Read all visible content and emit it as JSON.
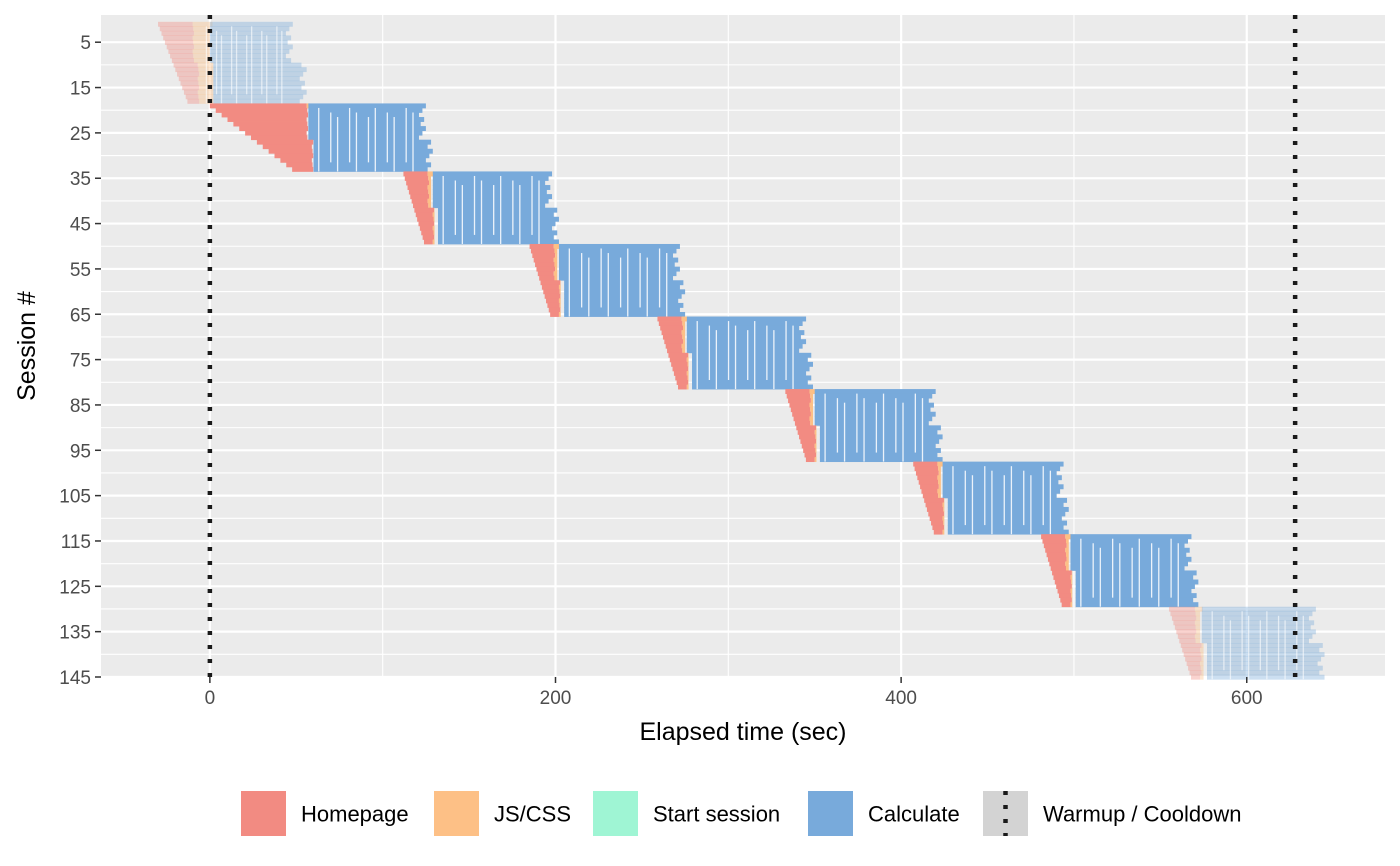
{
  "chart_data": {
    "type": "gantt",
    "xlabel": "Elapsed time (sec)",
    "ylabel": "Session #",
    "xlim": [
      -63,
      680
    ],
    "ylim": [
      145,
      -1
    ],
    "x_ticks": [
      "0",
      "200",
      "400",
      "600"
    ],
    "x_tick_values": [
      0,
      200,
      400,
      600
    ],
    "y_ticks": [
      "5",
      "15",
      "25",
      "35",
      "45",
      "55",
      "65",
      "75",
      "85",
      "95",
      "105",
      "115",
      "125",
      "135",
      "145"
    ],
    "y_tick_values": [
      5,
      15,
      25,
      35,
      45,
      55,
      65,
      75,
      85,
      95,
      105,
      115,
      125,
      135,
      145
    ],
    "grid": true,
    "panel_background": "#ebebeb",
    "warmup_end": 0,
    "cooldown_start": 628,
    "legend_position": "bottom",
    "legend": [
      {
        "label": "Homepage",
        "color": "#f28b82"
      },
      {
        "label": "JS/CSS",
        "color": "#fdc086"
      },
      {
        "label": "Start session",
        "color": "#9ff5d4"
      },
      {
        "label": "Calculate",
        "color": "#78aadb"
      },
      {
        "label": "Warmup / Cooldown",
        "color": "#d3d3d3",
        "line": "dotted"
      }
    ],
    "waves": [
      {
        "sessions": [
          1,
          18
        ],
        "start": -30,
        "homepage_end": -10,
        "jscss_end": 0,
        "calc_start": -8,
        "calc_end_a": 48,
        "calc_end_b": 56,
        "warmup": true
      },
      {
        "sessions": [
          19,
          33
        ],
        "start": 0,
        "homepage_end": 56,
        "jscss_end": 56,
        "calc_start": 57,
        "calc_end_a": 125,
        "calc_end_b": 129,
        "warmup": false
      },
      {
        "sessions": [
          34,
          49
        ],
        "start": 112,
        "homepage_end": 126,
        "jscss_end": 128,
        "calc_start": 129,
        "calc_end_a": 198,
        "calc_end_b": 202,
        "warmup": false
      },
      {
        "sessions": [
          50,
          65
        ],
        "start": 185,
        "homepage_end": 199,
        "jscss_end": 201,
        "calc_start": 202,
        "calc_end_a": 272,
        "calc_end_b": 275,
        "warmup": false
      },
      {
        "sessions": [
          66,
          81
        ],
        "start": 259,
        "homepage_end": 273,
        "jscss_end": 275,
        "calc_start": 276,
        "calc_end_a": 345,
        "calc_end_b": 349,
        "warmup": false
      },
      {
        "sessions": [
          82,
          97
        ],
        "start": 333,
        "homepage_end": 347,
        "jscss_end": 349,
        "calc_start": 350,
        "calc_end_a": 420,
        "calc_end_b": 424,
        "warmup": false
      },
      {
        "sessions": [
          98,
          113
        ],
        "start": 407,
        "homepage_end": 421,
        "jscss_end": 423,
        "calc_start": 424,
        "calc_end_a": 494,
        "calc_end_b": 497,
        "warmup": false
      },
      {
        "sessions": [
          114,
          129
        ],
        "start": 481,
        "homepage_end": 495,
        "jscss_end": 497,
        "calc_start": 498,
        "calc_end_a": 568,
        "calc_end_b": 572,
        "warmup": false
      },
      {
        "sessions": [
          130,
          145
        ],
        "start": 555,
        "homepage_end": 570,
        "jscss_end": 573,
        "calc_start": 574,
        "calc_end_a": 640,
        "calc_end_b": 645,
        "warmup": true
      }
    ]
  }
}
